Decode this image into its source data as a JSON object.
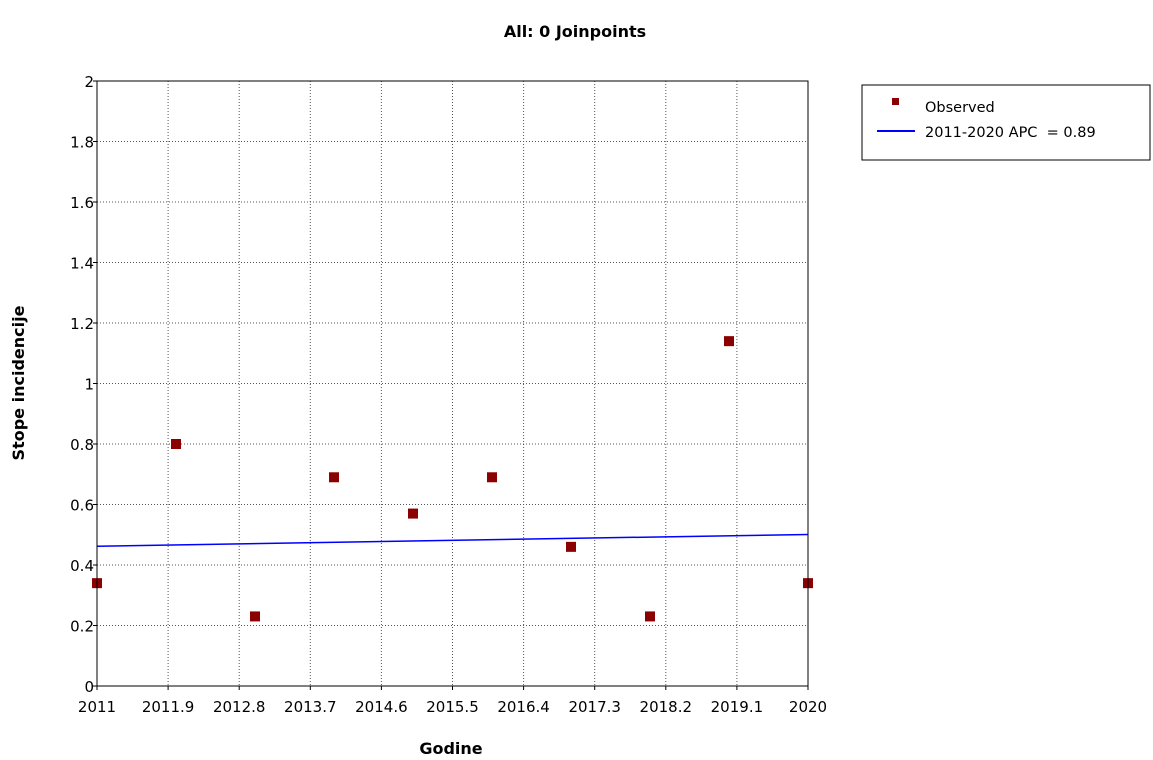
{
  "chart_data": {
    "type": "scatter",
    "title": "All: 0 Joinpoints",
    "xlabel": "Godine",
    "ylabel": "Stope incidencije",
    "xlim": [
      2011,
      2020
    ],
    "ylim": [
      0,
      2
    ],
    "x_ticks": [
      2011,
      2011.9,
      2012.8,
      2013.7,
      2014.6,
      2015.5,
      2016.4,
      2017.3,
      2018.2,
      2019.1,
      2020
    ],
    "x_tick_labels": [
      "2011",
      "2011.9",
      "2012.8",
      "2013.7",
      "2014.6",
      "2015.5",
      "2016.4",
      "2017.3",
      "2018.2",
      "2019.1",
      "2020"
    ],
    "y_ticks": [
      0,
      0.2,
      0.4,
      0.6,
      0.8,
      1,
      1.2,
      1.4,
      1.6,
      1.8,
      2
    ],
    "y_tick_labels": [
      "0",
      "0.2",
      "0.4",
      "0.6",
      "0.8",
      "1",
      "1.2",
      "1.4",
      "1.6",
      "1.8",
      "2"
    ],
    "grid": true,
    "legend_position": "top-right",
    "series": [
      {
        "name": "Observed",
        "kind": "scatter",
        "color": "#8b0000",
        "x": [
          2011,
          2012,
          2013,
          2014,
          2015,
          2016,
          2017,
          2018,
          2019,
          2020
        ],
        "y": [
          0.34,
          0.8,
          0.23,
          0.69,
          0.57,
          0.69,
          0.46,
          0.23,
          1.14,
          0.34
        ]
      },
      {
        "name": "2011-2020 APC  = 0.89",
        "kind": "line",
        "color": "#0000ff",
        "x": [
          2011,
          2020
        ],
        "y": [
          0.462,
          0.501
        ]
      }
    ]
  }
}
